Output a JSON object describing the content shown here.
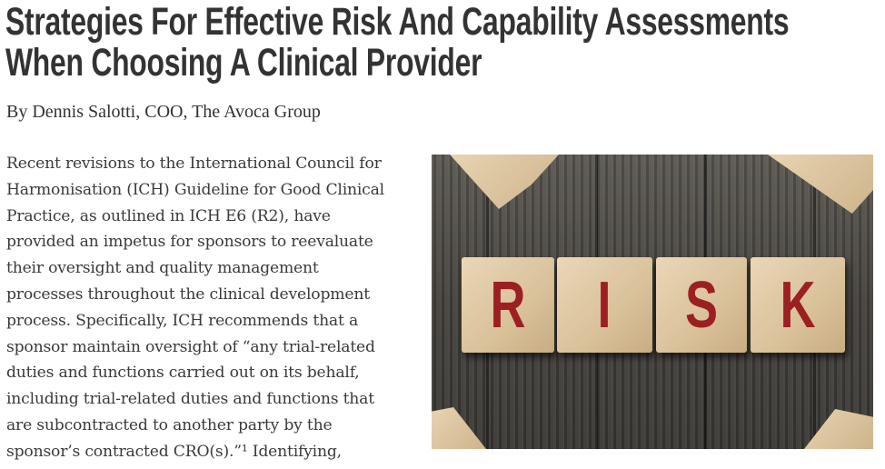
{
  "article": {
    "title_lines": [
      "Strategies For Effective Risk And Capability Assessments",
      "When Choosing A Clinical Provider"
    ],
    "byline": "By Dennis Salotti, COO, The Avoca Group",
    "body_lines": [
      "Recent revisions to the International Council for",
      "Harmonisation (ICH) Guideline for Good Clinical",
      "Practice, as outlined in ICH E6 (R2), have",
      "provided an impetus for sponsors to reevaluate",
      "their oversight and quality management",
      "processes throughout the clinical development",
      "process. Specifically, ICH recommends that a",
      "sponsor maintain oversight of “any trial-related",
      "duties and functions carried out on its behalf,",
      "including trial-related duties and functions that",
      "are subcontracted to another party by the",
      "sponsor’s contracted CRO(s).”¹ Identifying,"
    ]
  },
  "image": {
    "letters": [
      "R",
      "I",
      "S",
      "K"
    ],
    "letter_color": "#9c1f22"
  }
}
